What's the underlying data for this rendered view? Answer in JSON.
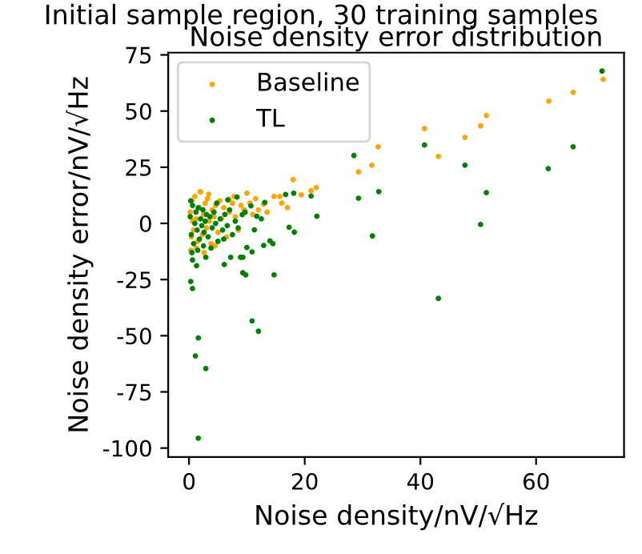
{
  "chart_data": {
    "type": "scatter",
    "title": "Initial sample region, 30 training samples",
    "subtitle": "Noise density error distribution",
    "xlabel": "Noise density/nV/√Hz",
    "ylabel": "Noise density error/nV/√Hz",
    "xlim": [
      -3.6,
      75.2
    ],
    "ylim": [
      -104.0,
      76.0
    ],
    "xticks": [
      0,
      20,
      40,
      60
    ],
    "yticks": [
      -100,
      -75,
      -50,
      -25,
      0,
      25,
      50,
      75
    ],
    "legend": "top left",
    "grid": false,
    "marker": "circle",
    "series": [
      {
        "name": "Baseline",
        "color": "#ffa500",
        "x": [
          71.6,
          66.4,
          62.2,
          51.4,
          50.4,
          47.7,
          43.1,
          40.7,
          32.7,
          31.6,
          29.3,
          22.0,
          21.1,
          19.4,
          18.0,
          15.7,
          14.7,
          12.9,
          10.0,
          6.9,
          1.9,
          0.2,
          0.5,
          0.8,
          1.0,
          1.2,
          1.5,
          1.8,
          2.0,
          2.3,
          2.5,
          2.8,
          3.0,
          3.2,
          3.5,
          3.8,
          4.0,
          4.3,
          4.6,
          5.0,
          5.3,
          5.6,
          6.0,
          6.5,
          7.0,
          7.5,
          8.0,
          8.5,
          9.0,
          9.5,
          10.5,
          11.0,
          12.0,
          0.3,
          1.3,
          2.6,
          4.5,
          13.5,
          16.0,
          17.0,
          0.6,
          0.4,
          3.4,
          7.8,
          11.5
        ],
        "values": [
          64.1,
          58.3,
          54.4,
          48.0,
          43.4,
          38.3,
          29.8,
          42.2,
          34.1,
          25.9,
          22.9,
          15.9,
          14.6,
          12.7,
          19.5,
          12.0,
          12.0,
          8.5,
          13.4,
          10.7,
          14.1,
          5,
          10,
          -3,
          12,
          2,
          -8,
          7,
          14,
          -5,
          4,
          9,
          -2,
          11,
          1,
          -9,
          6,
          3,
          8,
          -4,
          10,
          2,
          7,
          -6,
          5,
          9,
          3,
          -3,
          8,
          6,
          9,
          4,
          6,
          -12,
          -11,
          -13,
          -10,
          5,
          9,
          7,
          1,
          -6,
          13,
          12,
          11
        ]
      },
      {
        "name": "TL",
        "color": "#008000",
        "x": [
          71.4,
          66.4,
          62.1,
          51.4,
          50.4,
          47.7,
          43.1,
          40.7,
          32.8,
          31.7,
          29.3,
          28.5,
          22.1,
          21.1,
          18.1,
          18.2,
          16.7,
          17.3,
          14.7,
          14.5,
          14.0,
          13.1,
          12.9,
          12.0,
          10.9,
          10.9,
          10.0,
          9.3,
          9.8,
          8.9,
          9.3,
          7.2,
          6.1,
          8.3,
          6.7,
          2.9,
          1.6,
          1.1,
          1.6,
          0.3,
          0.6,
          1.3,
          0.6,
          2.9,
          11.3,
          11.7,
          10.7,
          9.2,
          0.2,
          0.4,
          0.6,
          0.8,
          1.0,
          1.2,
          1.4,
          1.6,
          1.8,
          2.0,
          2.2,
          2.4,
          2.6,
          2.8,
          3.0,
          3.3,
          3.6,
          4.0,
          4.3,
          4.6,
          5.0,
          5.4,
          5.8,
          6.2,
          6.6,
          7.0,
          7.5,
          8.0,
          8.5,
          0.5,
          1.5,
          2.5,
          3.8,
          9.7,
          12.5,
          0.3,
          4.8,
          6.0
        ],
        "values": [
          67.8,
          34.1,
          24.4,
          13.7,
          -0.5,
          25.9,
          -33.4,
          34.9,
          14.1,
          -5.6,
          11.2,
          30.2,
          3.2,
          12.2,
          13.4,
          -3.9,
          12.9,
          -1.7,
          -22.9,
          -9.0,
          -7.8,
          9.3,
          -9.8,
          -48.0,
          -43.4,
          -12.7,
          -10.7,
          -22.0,
          -22.9,
          -15.1,
          -15.1,
          -15.1,
          -18.3,
          11.7,
          10.5,
          -64.6,
          -51.0,
          -59.0,
          -95.6,
          -25.9,
          -29.0,
          -18.8,
          -16.3,
          -15.1,
          -2.9,
          3.2,
          7.8,
          3.9,
          3,
          -5,
          8,
          -9,
          0,
          5,
          -3,
          7,
          -7,
          2,
          -1,
          6,
          -4,
          1,
          4,
          -6,
          3,
          -2,
          5,
          0,
          -8,
          2,
          -3,
          4,
          -1,
          6,
          -5,
          1,
          -2,
          -13,
          -12,
          -10,
          -11,
          5,
          2,
          10,
          9,
          -7
        ]
      }
    ]
  }
}
